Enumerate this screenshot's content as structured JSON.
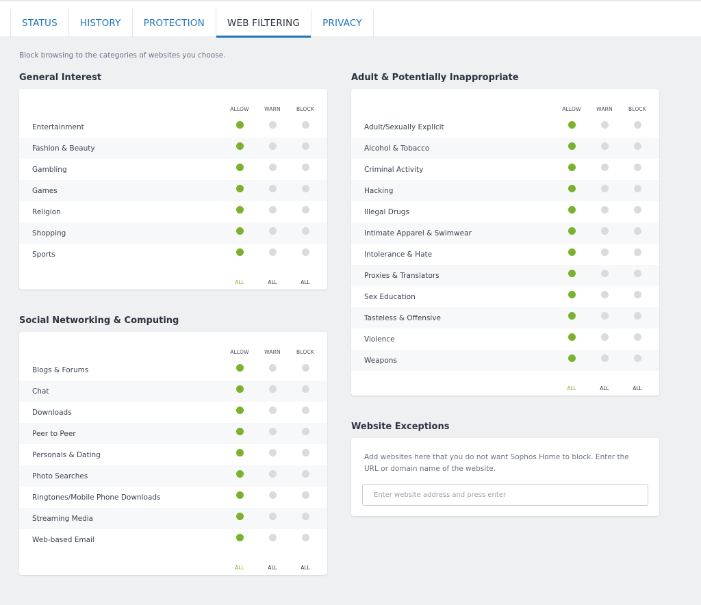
{
  "tabs": [
    {
      "label": "STATUS"
    },
    {
      "label": "HISTORY"
    },
    {
      "label": "PROTECTION"
    },
    {
      "label": "WEB FILTERING"
    },
    {
      "label": "PRIVACY"
    }
  ],
  "active_tab": "WEB FILTERING",
  "description": "Block browsing to the categories of websites you choose.",
  "columns": {
    "allow": "ALLOW",
    "warn": "WARN",
    "block": "BLOCK",
    "all": "ALL"
  },
  "colors": {
    "accent": "#1d74b8",
    "allow_on": "#7ab22e",
    "off": "#d9dbde"
  },
  "sections": [
    {
      "title": "General Interest",
      "all_selected": "allow",
      "items": [
        {
          "label": "Entertainment",
          "setting": "allow"
        },
        {
          "label": "Fashion & Beauty",
          "setting": "allow"
        },
        {
          "label": "Gambling",
          "setting": "allow"
        },
        {
          "label": "Games",
          "setting": "allow"
        },
        {
          "label": "Religion",
          "setting": "allow"
        },
        {
          "label": "Shopping",
          "setting": "allow"
        },
        {
          "label": "Sports",
          "setting": "allow"
        }
      ]
    },
    {
      "title": "Social Networking & Computing",
      "all_selected": "allow",
      "items": [
        {
          "label": "Blogs & Forums",
          "setting": "allow"
        },
        {
          "label": "Chat",
          "setting": "allow"
        },
        {
          "label": "Downloads",
          "setting": "allow"
        },
        {
          "label": "Peer to Peer",
          "setting": "allow"
        },
        {
          "label": "Personals & Dating",
          "setting": "allow"
        },
        {
          "label": "Photo Searches",
          "setting": "allow"
        },
        {
          "label": "Ringtones/Mobile Phone Downloads",
          "setting": "allow"
        },
        {
          "label": "Streaming Media",
          "setting": "allow"
        },
        {
          "label": "Web-based Email",
          "setting": "allow"
        }
      ]
    },
    {
      "title": "Adult & Potentially Inappropriate",
      "all_selected": "allow",
      "items": [
        {
          "label": "Adult/Sexually Explicit",
          "setting": "allow"
        },
        {
          "label": "Alcohol & Tobacco",
          "setting": "allow"
        },
        {
          "label": "Criminal Activity",
          "setting": "allow"
        },
        {
          "label": "Hacking",
          "setting": "allow"
        },
        {
          "label": "Illegal Drugs",
          "setting": "allow"
        },
        {
          "label": "Intimate Apparel & Swimwear",
          "setting": "allow"
        },
        {
          "label": "Intolerance & Hate",
          "setting": "allow"
        },
        {
          "label": "Proxies & Translators",
          "setting": "allow"
        },
        {
          "label": "Sex Education",
          "setting": "allow"
        },
        {
          "label": "Tasteless & Offensive",
          "setting": "allow"
        },
        {
          "label": "Violence",
          "setting": "allow"
        },
        {
          "label": "Weapons",
          "setting": "allow"
        }
      ]
    }
  ],
  "exceptions": {
    "title": "Website Exceptions",
    "text": "Add websites here that you do not want Sophos Home to block. Enter the URL or domain name of the website.",
    "placeholder": "Enter website address and press enter",
    "value": ""
  }
}
